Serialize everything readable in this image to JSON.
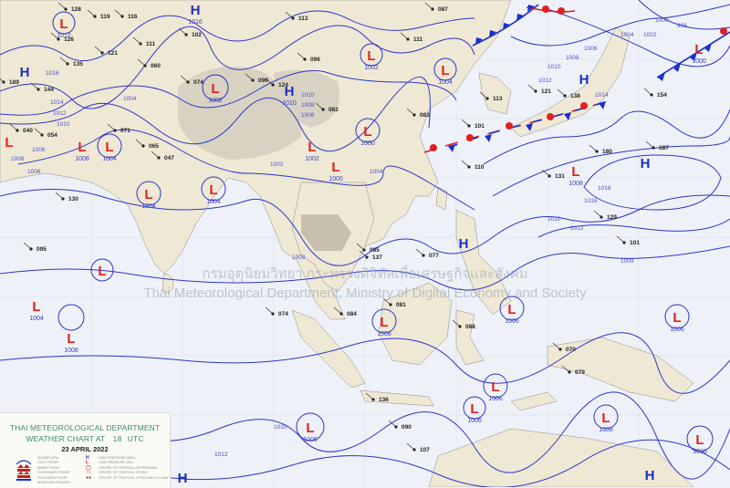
{
  "header": {
    "agency": "THAI METEOROLOGICAL DEPARTMENT",
    "chart_title": "WEATHER CHART AT",
    "hour": "18",
    "unit": "UTC",
    "date": "23  APRIL  2022"
  },
  "legend": {
    "lines": [
      "ISOBAR (hPa)",
      "COLD FRONT",
      "WARM FRONT",
      "STATIONARY FRONT",
      "OCCLUDED FRONT",
      "MONSOON TROUGH"
    ],
    "symbols": [
      "HIGH PRESSURE AREA",
      "LOW PRESSURE CELL",
      "CENTRE OF TROPICAL DEPRESSION",
      "CENTRE OF TROPICAL STORM",
      "CENTRE OF TROPICAL TYPHOON/CYCLONE"
    ]
  },
  "watermark": {
    "thai": "กรมอุตุนิยมวิทยา กระทรวงดิจิทัลเพื่อเศรษฐกิจและสังคม",
    "english": "Thai Meteorological Department, Ministry of Digital Economy and Society"
  },
  "colors": {
    "high": "#1a2fbf",
    "low": "#e02020",
    "isobar": "#2b35c8",
    "cold_front": "#1a2fd0",
    "warm_front": "#e02020",
    "land": "#efe8d4",
    "plateau": "#d9d2c2",
    "sea": "#eef1f8"
  },
  "pressure_centers": [
    {
      "type": "H",
      "value": "1016"
    },
    {
      "type": "H",
      "value": ""
    },
    {
      "type": "H",
      "value": "1010"
    },
    {
      "type": "L",
      "value": "1012"
    },
    {
      "type": "L",
      "value": "1002"
    },
    {
      "type": "L",
      "value": "1004"
    },
    {
      "type": "L",
      "value": "1004"
    },
    {
      "type": "L",
      "value": "1002"
    },
    {
      "type": "L",
      "value": "1004"
    },
    {
      "type": "L",
      "value": "1004"
    },
    {
      "type": "L",
      "value": "1000"
    },
    {
      "type": "L",
      "value": "1000"
    },
    {
      "type": "L",
      "value": "1002"
    },
    {
      "type": "L",
      "value": "1004"
    },
    {
      "type": "L",
      "value": ""
    },
    {
      "type": "H",
      "value": ""
    },
    {
      "type": "H",
      "value": ""
    },
    {
      "type": "L",
      "value": "1000"
    },
    {
      "type": "L",
      "value": "1008"
    },
    {
      "type": "L",
      "value": ""
    },
    {
      "type": "L",
      "value": "1008"
    },
    {
      "type": "H",
      "value": ""
    },
    {
      "type": "L",
      "value": "1008"
    },
    {
      "type": "L",
      "value": "1006"
    },
    {
      "type": "L",
      "value": "1006"
    },
    {
      "type": "L",
      "value": "1006"
    },
    {
      "type": "L",
      "value": "1006"
    },
    {
      "type": "L",
      "value": "1006"
    },
    {
      "type": "L",
      "value": "1008"
    },
    {
      "type": "L",
      "value": "1006"
    },
    {
      "type": "H",
      "value": ""
    },
    {
      "type": "H",
      "value": ""
    },
    {
      "type": "L",
      "value": "1008"
    }
  ],
  "isobar_labels": [
    "1016",
    "1014",
    "1012",
    "1010",
    "1008",
    "1006",
    "1010",
    "1008",
    "1006",
    "1004",
    "1002",
    "1004",
    "1009",
    "1014",
    "1018",
    "1016",
    "1012",
    "1010",
    "1008",
    "1006",
    "1004",
    "1002",
    "1000",
    "998",
    "1010",
    "1012",
    "1008",
    "1009",
    "1012",
    "1010"
  ],
  "station_values": [
    "119",
    "116",
    "126",
    "128",
    "087",
    "135",
    "111",
    "121",
    "113",
    "111",
    "130",
    "102",
    "095",
    "144",
    "189",
    "040",
    "054",
    "065",
    "071",
    "047",
    "074",
    "060",
    "090",
    "124",
    "096",
    "082",
    "083",
    "101",
    "110",
    "113",
    "121",
    "138",
    "154",
    "187",
    "180",
    "131",
    "129",
    "101",
    "137",
    "084",
    "074",
    "077",
    "085",
    "081",
    "088",
    "070",
    "079",
    "090",
    "107",
    "136"
  ]
}
